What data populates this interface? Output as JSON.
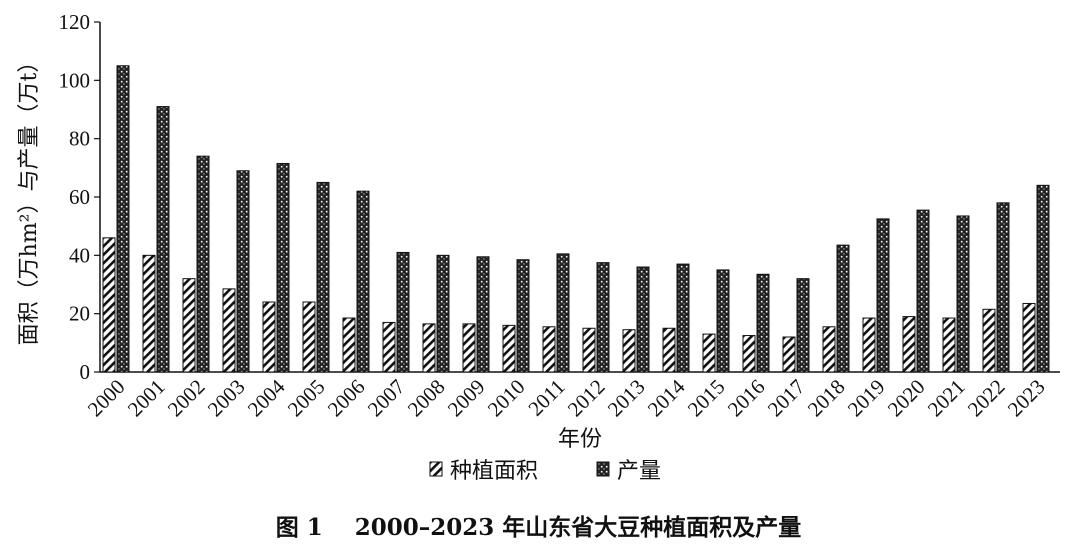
{
  "caption": {
    "label": "图 1",
    "text": "2000–2023 年山东省大豆种植面积及产量"
  },
  "chart_data": {
    "type": "bar",
    "categories": [
      "2000",
      "2001",
      "2002",
      "2003",
      "2004",
      "2005",
      "2006",
      "2007",
      "2008",
      "2009",
      "2010",
      "2011",
      "2012",
      "2013",
      "2014",
      "2015",
      "2016",
      "2017",
      "2018",
      "2019",
      "2020",
      "2021",
      "2022",
      "2023"
    ],
    "series": [
      {
        "name": "种植面积",
        "values": [
          46,
          40,
          32,
          28.5,
          24,
          24,
          18.5,
          17,
          16.5,
          16.5,
          16,
          15.5,
          15,
          14.5,
          15,
          13,
          12.5,
          12,
          15.5,
          18.5,
          19,
          18.5,
          21.5,
          23.5
        ]
      },
      {
        "name": "产量",
        "values": [
          105,
          91,
          74,
          69,
          71.5,
          65,
          62,
          41,
          40,
          39.5,
          38.5,
          40.5,
          37.5,
          36,
          37,
          35,
          33.5,
          32,
          43.5,
          52.5,
          55.5,
          53.5,
          58,
          64
        ]
      }
    ],
    "xlabel": "年份",
    "ylabel": "面积（万hm²）与产量（万t）",
    "ylim": [
      0,
      120
    ],
    "yticks": [
      0,
      20,
      40,
      60,
      80,
      100,
      120
    ],
    "legend_position": "bottom-center",
    "grid": false,
    "colors": {
      "axis": "#111111",
      "bar_fill": "#ffffff",
      "hatch": "#111111"
    }
  }
}
